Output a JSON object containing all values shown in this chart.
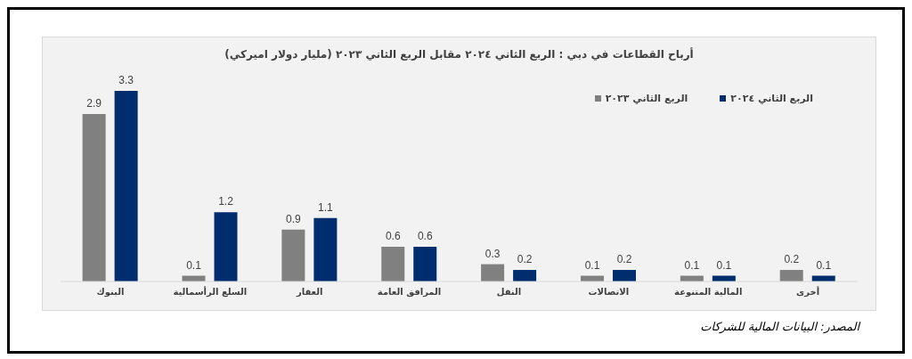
{
  "chart_data": {
    "type": "bar",
    "title": "أرباح القطاعات في دبي : الربع الثاني ٢٠٢٤ مقابل الربع الثاني ٢٠٢٣ (مليار دولار اميركي)",
    "categories": [
      "البنوك",
      "السلع الرأسمالية",
      "العقار",
      "المرافق العامة",
      "النقل",
      "الاتصالات",
      "المالية المتنوعة",
      "أخرى"
    ],
    "series": [
      {
        "name": "الربع الثاني ٢٠٢٣",
        "color": "#808080",
        "values": [
          2.9,
          0.1,
          0.9,
          0.6,
          0.3,
          0.1,
          0.1,
          0.2
        ]
      },
      {
        "name": "الربع الثاني ٢٠٢٤",
        "color": "#002d6e",
        "values": [
          3.3,
          1.2,
          1.1,
          0.6,
          0.2,
          0.2,
          0.1,
          0.1
        ]
      }
    ],
    "data_labels": true,
    "legend": "top right",
    "grid": false,
    "annotations": [
      "المصدر: البيانات المالية للشركات"
    ]
  }
}
